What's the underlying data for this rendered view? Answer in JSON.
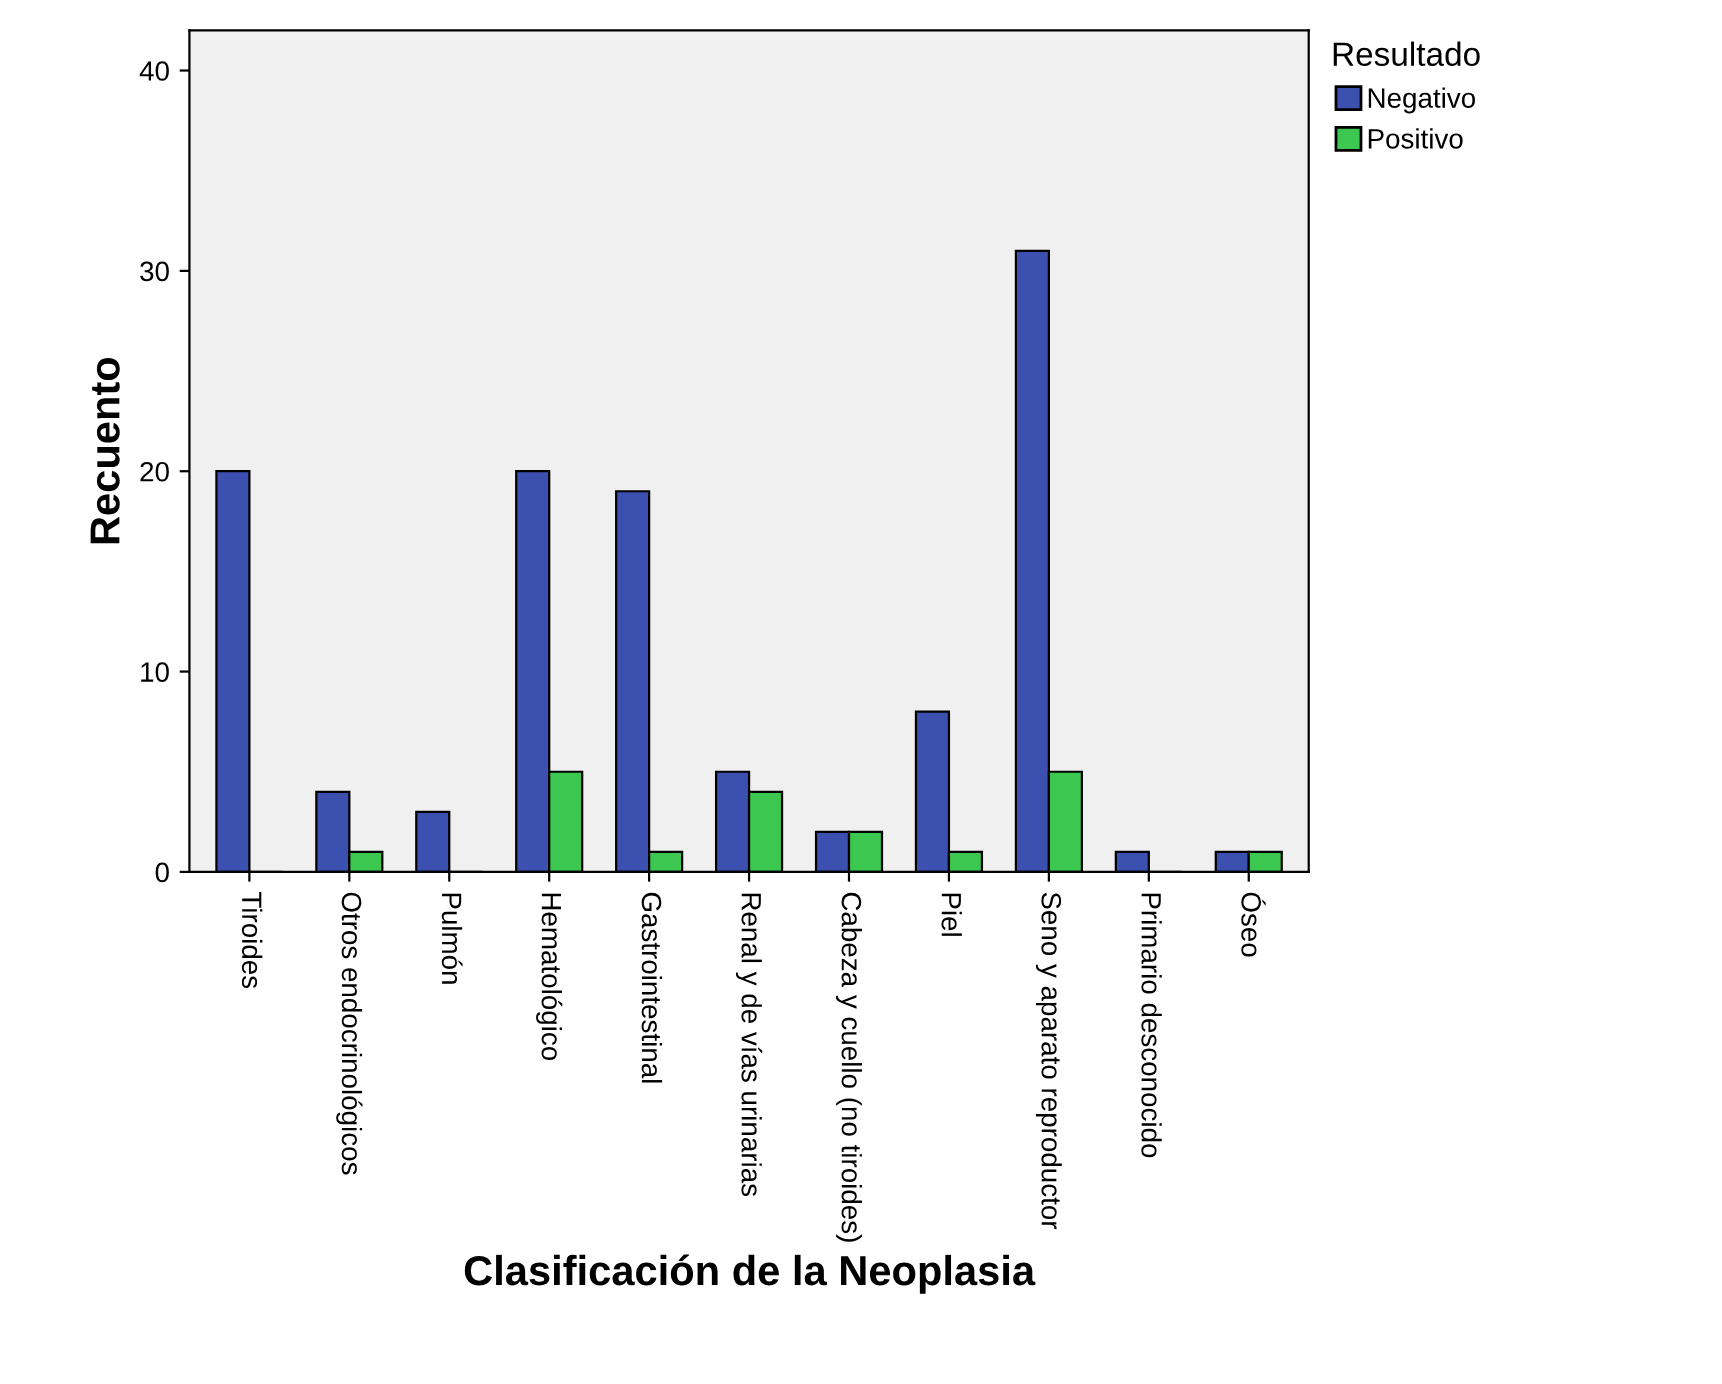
{
  "chart_data": {
    "type": "bar",
    "xlabel": "Clasificación de la Neoplasia",
    "ylabel": "Recuento",
    "legend_title": "Resultado",
    "categories": [
      "Tiroides",
      "Otros endocrinológicos",
      "Pulmón",
      "Hematológico",
      "Gastrointestinal",
      "Renal y de vías urinarias",
      "Cabeza y cuello (no tiroides)",
      "Piel",
      "Seno y aparato reproductor",
      "Primario desconocido",
      "Óseo"
    ],
    "series": [
      {
        "name": "Negativo",
        "color": "#3c50b0",
        "values": [
          20,
          4,
          3,
          20,
          19,
          5,
          2,
          8,
          31,
          1,
          1
        ]
      },
      {
        "name": "Positivo",
        "color": "#3cc850",
        "values": [
          0,
          1,
          0,
          5,
          1,
          4,
          2,
          1,
          5,
          0,
          1
        ]
      }
    ],
    "ylim": [
      0,
      42
    ],
    "yticks": [
      0,
      10,
      20,
      30,
      40
    ],
    "grid": false,
    "legend": "top right"
  }
}
